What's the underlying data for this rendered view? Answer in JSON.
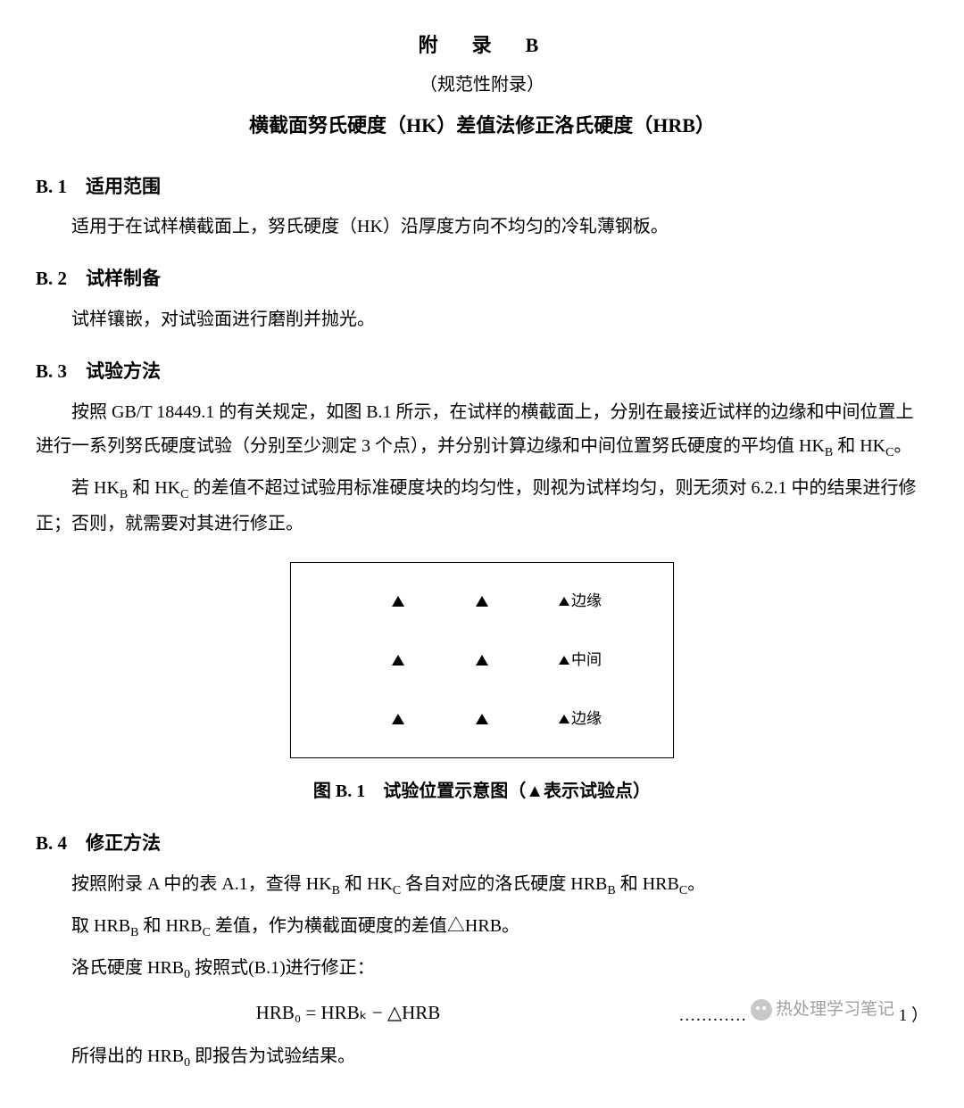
{
  "header": {
    "appendix": "附　录　B",
    "subtitle": "（规范性附录）",
    "title": "横截面努氏硬度（HK）差值法修正洛氏硬度（HRB）"
  },
  "sections": {
    "b1": {
      "num": "B. 1",
      "title": "适用范围",
      "p1": "适用于在试样横截面上，努氏硬度（HK）沿厚度方向不均匀的冷轧薄钢板。"
    },
    "b2": {
      "num": "B. 2",
      "title": "试样制备",
      "p1": "试样镶嵌，对试验面进行磨削并抛光。"
    },
    "b3": {
      "num": "B. 3",
      "title": "试验方法",
      "p1a": "按照 GB/T 18449.1 的有关规定，如图 B.1 所示，在试样的横截面上，分别在最接近试样的边缘和中间位置上进行一系列努氏硬度试验（分别至少测定 3 个点），并分别计算边缘和中间位置努氏硬度的平均值 HK",
      "p1b": " 和 HK",
      "p1c": "。",
      "p2a": "若 HK",
      "p2b": " 和 HK",
      "p2c": " 的差值不超过试验用标准硬度块的均匀性，则视为试样均匀，则无须对 6.2.1 中的结果进行修正；否则，就需要对其进行修正。"
    },
    "b4": {
      "num": "B. 4",
      "title": "修正方法",
      "p1a": "按照附录 A 中的表 A.1，查得 HK",
      "p1b": " 和 HK",
      "p1c": " 各自对应的洛氏硬度 HRB",
      "p1d": " 和 HRB",
      "p1e": "。",
      "p2a": "取 HRB",
      "p2b": " 和 HRB",
      "p2c": " 差值，作为横截面硬度的差值△HRB。",
      "p3a": "洛氏硬度 HRB",
      "p3b": " 按照式(B.1)进行修正：",
      "p4a": "所得出的 HRB",
      "p4b": " 即报告为试验结果。"
    }
  },
  "subs": {
    "B": "B",
    "C": "C",
    "K": "K",
    "zero": "0"
  },
  "diagram": {
    "row_labels": [
      "边缘",
      "中间",
      "边缘"
    ],
    "caption": "图 B. 1　试验位置示意图（▲表示试验点）",
    "type": "schematic",
    "rows": 3,
    "cols": 3,
    "marker": "triangle",
    "marker_color": "#000000",
    "border_color": "#000000",
    "background_color": "#ffffff"
  },
  "formula": {
    "text": "HRB₀ = HRBₖ − △HRB",
    "ref_dots": "…………",
    "ref_num": "1 ）"
  },
  "watermark": {
    "text": "热处理学习笔记"
  },
  "colors": {
    "text": "#000000",
    "background": "#ffffff",
    "watermark": "#888888"
  }
}
